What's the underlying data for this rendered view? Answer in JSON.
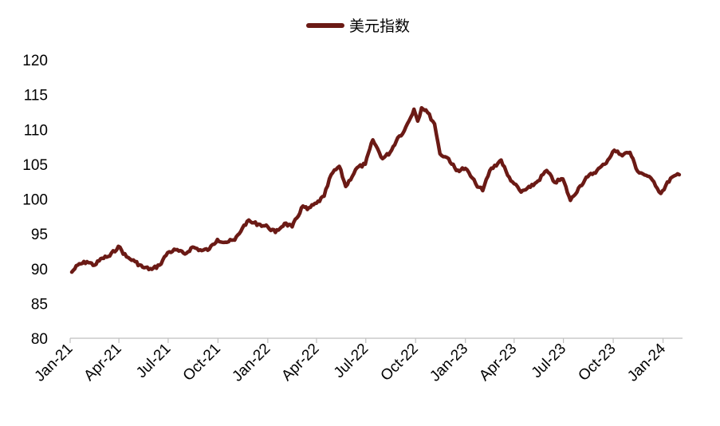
{
  "colors": {
    "series": "#6b1a15",
    "axis": "#bfbfbf"
  },
  "chart_data": {
    "type": "line",
    "title": "",
    "xlabel": "",
    "ylabel": "",
    "ylim": [
      80,
      120
    ],
    "yticks": [
      80,
      85,
      90,
      95,
      100,
      105,
      110,
      115,
      120
    ],
    "xticks": [
      "Jan-21",
      "Apr-21",
      "Jul-21",
      "Oct-21",
      "Jan-22",
      "Apr-22",
      "Jul-22",
      "Oct-22",
      "Jan-23",
      "Apr-23",
      "Jul-23",
      "Oct-23",
      "Jan-24"
    ],
    "grid": false,
    "legend": "top-center",
    "series": [
      {
        "name": "美元指数",
        "x": [
          "2021-01-04",
          "2021-01-15",
          "2021-02-01",
          "2021-02-15",
          "2021-03-01",
          "2021-03-15",
          "2021-03-31",
          "2021-04-15",
          "2021-05-01",
          "2021-05-15",
          "2021-06-01",
          "2021-06-15",
          "2021-06-30",
          "2021-07-15",
          "2021-08-01",
          "2021-08-15",
          "2021-09-01",
          "2021-09-15",
          "2021-09-30",
          "2021-10-15",
          "2021-11-01",
          "2021-11-15",
          "2021-11-24",
          "2021-12-15",
          "2022-01-01",
          "2022-01-15",
          "2022-02-01",
          "2022-02-15",
          "2022-03-07",
          "2022-03-15",
          "2022-04-01",
          "2022-04-15",
          "2022-04-28",
          "2022-05-13",
          "2022-05-25",
          "2022-06-15",
          "2022-06-30",
          "2022-07-14",
          "2022-08-01",
          "2022-08-15",
          "2022-08-29",
          "2022-09-10",
          "2022-09-28",
          "2022-10-05",
          "2022-10-12",
          "2022-10-20",
          "2022-11-05",
          "2022-11-15",
          "2022-12-01",
          "2022-12-15",
          "2023-01-01",
          "2023-01-20",
          "2023-02-02",
          "2023-02-15",
          "2023-03-08",
          "2023-03-20",
          "2023-04-01",
          "2023-04-14",
          "2023-05-01",
          "2023-05-15",
          "2023-05-31",
          "2023-06-15",
          "2023-06-30",
          "2023-07-14",
          "2023-08-01",
          "2023-08-15",
          "2023-09-01",
          "2023-09-15",
          "2023-10-03",
          "2023-10-15",
          "2023-11-01",
          "2023-11-15",
          "2023-12-01",
          "2023-12-15",
          "2023-12-28",
          "2024-01-15",
          "2024-01-31"
        ],
        "values": [
          89.5,
          90.5,
          91.0,
          90.5,
          91.5,
          91.8,
          93.2,
          91.7,
          91.0,
          90.2,
          89.9,
          90.5,
          92.3,
          92.7,
          92.1,
          93.1,
          92.6,
          92.8,
          94.2,
          93.8,
          94.1,
          95.8,
          96.8,
          96.4,
          96.0,
          95.2,
          96.5,
          96.0,
          99.0,
          98.5,
          99.4,
          100.4,
          103.5,
          104.7,
          101.8,
          104.5,
          105.0,
          108.5,
          105.8,
          106.7,
          108.8,
          109.8,
          112.9,
          111.2,
          113.1,
          112.8,
          110.8,
          106.5,
          105.8,
          104.1,
          104.4,
          102.2,
          101.2,
          104.1,
          105.6,
          103.4,
          102.2,
          101.0,
          101.7,
          102.6,
          104.1,
          102.4,
          102.9,
          99.8,
          101.9,
          103.2,
          104.1,
          105.0,
          107.0,
          106.4,
          106.7,
          104.0,
          103.4,
          102.5,
          100.8,
          103.0,
          103.5
        ]
      }
    ]
  }
}
